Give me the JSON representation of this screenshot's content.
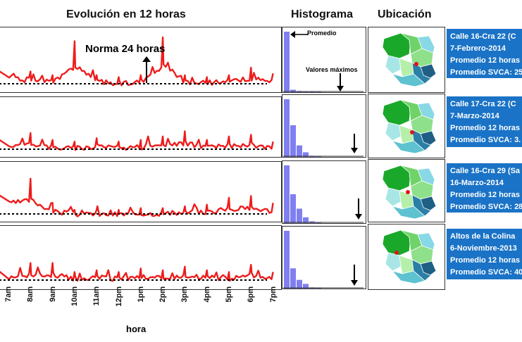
{
  "headers": {
    "evolution": "Evolución en 12 horas",
    "histogram": "Histograma",
    "location": "Ubicación"
  },
  "annotations": {
    "norm": "Norma 24 horas",
    "average": "Promedio",
    "max_values": "Valores máximos"
  },
  "x_axis": {
    "label": "hora",
    "ticks": [
      "7am",
      "8am",
      "9am",
      "10am",
      "11am",
      "12pm",
      "1pm",
      "2pm",
      "3pm",
      "4pm",
      "5pm",
      "6pm",
      "7pm"
    ]
  },
  "colors": {
    "series": "#ee1c1c",
    "histogram": "#7f7ff0",
    "info_bg": "#1a73c6"
  },
  "chart_data": [
    {
      "type": "line",
      "x": [
        "7am",
        "8am",
        "9am",
        "10am",
        "11am",
        "12pm",
        "1pm",
        "2pm",
        "3pm",
        "4pm",
        "5pm",
        "6pm",
        "7pm"
      ],
      "series": [
        {
          "values": [
            0.55,
            0.4,
            0.3,
            1.2,
            0.3,
            0.25,
            0.3,
            1.3,
            0.3,
            0.25,
            0.3,
            0.5,
            0.35
          ]
        }
      ],
      "reference_line": "Norma 24 horas"
    },
    {
      "type": "line",
      "x": [
        "7am",
        "8am",
        "9am",
        "10am",
        "11am",
        "12pm",
        "1pm",
        "2pm",
        "3pm",
        "4pm",
        "5pm",
        "6pm",
        "7pm"
      ],
      "series": [
        {
          "values": [
            0.45,
            0.55,
            0.35,
            0.3,
            0.4,
            0.3,
            0.35,
            0.45,
            0.6,
            0.35,
            0.45,
            0.5,
            0.3
          ]
        }
      ]
    },
    {
      "type": "line",
      "x": [
        "7am",
        "8am",
        "9am",
        "10am",
        "11am",
        "12pm",
        "1pm",
        "2pm",
        "3pm",
        "4pm",
        "5pm",
        "6pm",
        "7pm"
      ],
      "series": [
        {
          "values": [
            0.9,
            1.1,
            0.4,
            0.2,
            0.2,
            0.2,
            0.25,
            0.25,
            0.3,
            0.35,
            0.55,
            0.6,
            0.4
          ]
        }
      ]
    },
    {
      "type": "line",
      "x": [
        "7am",
        "8am",
        "9am",
        "10am",
        "11am",
        "12pm",
        "1pm",
        "2pm",
        "3pm",
        "4pm",
        "5pm",
        "6pm",
        "7pm"
      ],
      "series": [
        {
          "values": [
            0.4,
            0.55,
            0.55,
            0.3,
            0.35,
            0.3,
            0.4,
            0.35,
            0.45,
            0.35,
            0.3,
            0.5,
            0.3
          ]
        }
      ]
    }
  ],
  "histograms": [
    [
      1.0,
      0.04,
      0.02,
      0.01,
      0.01,
      0.005
    ],
    [
      1.0,
      0.55,
      0.2,
      0.08,
      0.02,
      0.01
    ],
    [
      1.0,
      0.5,
      0.25,
      0.1,
      0.03,
      0.01
    ],
    [
      1.0,
      0.35,
      0.15,
      0.08,
      0.02,
      0.01
    ]
  ],
  "locations": [
    {
      "title": "Calle 16-Cra 22 (C",
      "date": "7-Febrero-2014",
      "avg12": "Promedio 12 horas",
      "svca": "Promedio SVCA: 25"
    },
    {
      "title": "Calle 17-Cra 22 (C",
      "date": "7-Marzo-2014",
      "avg12": "Promedio 12 horas",
      "svca": "Promedio SVCA: 3."
    },
    {
      "title": "Calle 16-Cra 29 (Sa",
      "date": "16-Marzo-2014",
      "avg12": "Promedio 12 horas",
      "svca": "Promedio SVCA: 28"
    },
    {
      "title": "Altos de la Colina",
      "date": "6-Noviembre-2013",
      "avg12": "Promedio 12 horas",
      "svca": "Promedio SVCA: 40"
    }
  ]
}
